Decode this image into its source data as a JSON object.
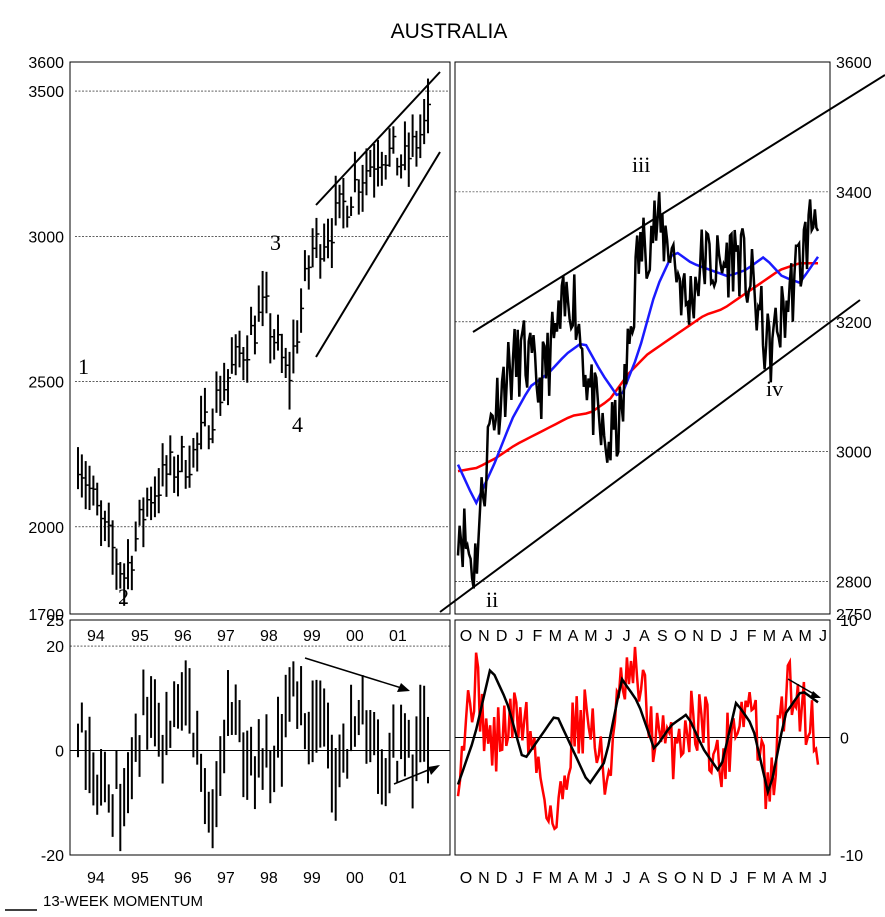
{
  "title": "AUSTRALIA",
  "footer": "13-WEEK MOMENTUM",
  "chart_data": [
    {
      "panel": "long-term",
      "type": "bar",
      "chart_style": "high-low-close bars",
      "x_tick_labels": [
        "94",
        "95",
        "96",
        "97",
        "98",
        "99",
        "00",
        "01"
      ],
      "y_tick_labels": [
        "3600",
        "3500",
        "3000",
        "2500",
        "2000",
        "1700"
      ],
      "ylim": [
        1700,
        3600
      ],
      "gridlines": [
        3500,
        3000,
        2500,
        2000
      ],
      "wave_labels": [
        "1",
        "2",
        "3",
        "4"
      ],
      "channel": "rising channel on 1999-2001 advance",
      "approx_path": [
        {
          "x": "94",
          "close": 2250
        },
        {
          "x": "94.5",
          "close": 2000
        },
        {
          "x": "95",
          "close": 1830
        },
        {
          "x": "95.5",
          "close": 2100
        },
        {
          "x": "96",
          "close": 2200
        },
        {
          "x": "96.5",
          "close": 2250
        },
        {
          "x": "97",
          "close": 2450
        },
        {
          "x": "97.5",
          "close": 2600
        },
        {
          "x": "98",
          "close": 2750
        },
        {
          "x": "98.5",
          "close": 2500
        },
        {
          "x": "99",
          "close": 2950
        },
        {
          "x": "99.5",
          "close": 3050
        },
        {
          "x": "00",
          "close": 3200
        },
        {
          "x": "00.5",
          "close": 3300
        },
        {
          "x": "01",
          "close": 3250
        },
        {
          "x": "01.3",
          "close": 3400
        }
      ]
    },
    {
      "panel": "short-term",
      "type": "line",
      "x_tick_labels": [
        "O",
        "N",
        "D",
        "J",
        "F",
        "M",
        "A",
        "M",
        "J",
        "J",
        "A",
        "S",
        "O",
        "N",
        "D",
        "J",
        "F",
        "M",
        "A",
        "M",
        "J"
      ],
      "y_tick_labels": [
        "3600",
        "3400",
        "3200",
        "3000",
        "2800",
        "2750"
      ],
      "ylim": [
        2750,
        3600
      ],
      "gridlines": [
        3400,
        3200,
        3000,
        2800
      ],
      "wave_labels": [
        "iii",
        "iv",
        "ii"
      ],
      "series": [
        {
          "color": "#000000",
          "values": [
            2900,
            2820,
            3050,
            3120,
            3150,
            3100,
            3180,
            3250,
            3100,
            3000,
            3050,
            3300,
            3350,
            3320,
            3220,
            3300,
            3280,
            3310,
            3250,
            3150,
            3220,
            3300,
            3390
          ]
        },
        {
          "color": "#1a1aff",
          "values": [
            2980,
            2920,
            2980,
            3050,
            3100,
            3120,
            3150,
            3170,
            3120,
            3080,
            3150,
            3250,
            3310,
            3290,
            3280,
            3270,
            3280,
            3300,
            3270,
            3260,
            3300
          ]
        },
        {
          "color": "#ff0000",
          "values": [
            2970,
            2975,
            2990,
            3010,
            3025,
            3040,
            3055,
            3060,
            3080,
            3120,
            3150,
            3170,
            3190,
            3210,
            3220,
            3240,
            3260,
            3280,
            3290,
            3290
          ]
        }
      ]
    },
    {
      "panel": "long-term momentum",
      "type": "bar",
      "x_tick_labels": [
        "94",
        "95",
        "96",
        "97",
        "98",
        "99",
        "00",
        "01"
      ],
      "y_tick_labels": [
        "25",
        "20",
        "0",
        "-20"
      ],
      "ylim": [
        -20,
        25
      ],
      "gridlines": [
        20,
        0
      ]
    },
    {
      "panel": "short-term momentum",
      "type": "line",
      "x_tick_labels": [
        "O",
        "N",
        "D",
        "J",
        "F",
        "M",
        "A",
        "M",
        "J",
        "J",
        "A",
        "S",
        "O",
        "N",
        "D",
        "J",
        "F",
        "M",
        "A",
        "M",
        "J"
      ],
      "y_tick_labels": [
        "10",
        "0",
        "-10"
      ],
      "ylim": [
        -10,
        10
      ],
      "gridlines": [
        0
      ],
      "series": [
        {
          "color": "#000000",
          "values": [
            -4,
            0,
            6,
            3,
            -2,
            0,
            2,
            -1,
            -4,
            -2,
            5,
            3,
            -1,
            1,
            2,
            -1,
            -3,
            3,
            1,
            -5,
            2,
            4,
            3
          ]
        },
        {
          "color": "#ff0000",
          "values": [
            -2,
            5,
            -1,
            1,
            2,
            -3,
            -8,
            1,
            2,
            -4,
            4,
            5,
            0,
            -1,
            1,
            2,
            -3,
            2,
            3,
            -6,
            4,
            3,
            0
          ]
        }
      ]
    }
  ]
}
